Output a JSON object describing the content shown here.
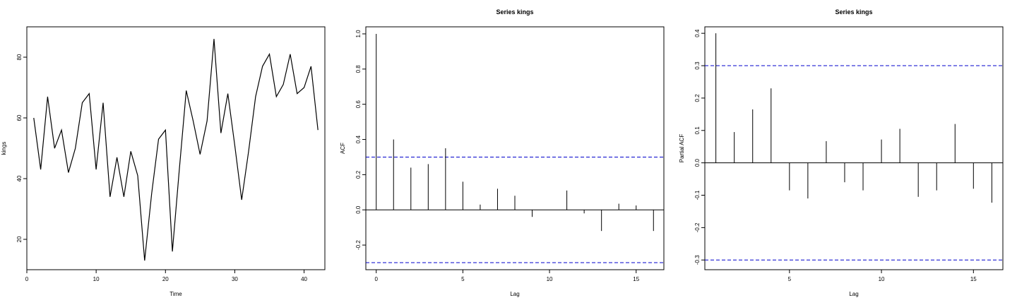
{
  "chart_data": [
    {
      "type": "line",
      "title": "",
      "xlabel": "Time",
      "ylabel": "kings",
      "xlim": [
        0,
        43
      ],
      "ylim": [
        10,
        90
      ],
      "x_ticks": [
        0,
        10,
        20,
        30,
        40
      ],
      "y_ticks": [
        20,
        40,
        60,
        80
      ],
      "x": [
        1,
        2,
        3,
        4,
        5,
        6,
        7,
        8,
        9,
        10,
        11,
        12,
        13,
        14,
        15,
        16,
        17,
        18,
        19,
        20,
        21,
        22,
        23,
        24,
        25,
        26,
        27,
        28,
        29,
        30,
        31,
        32,
        33,
        34,
        35,
        36,
        37,
        38,
        39,
        40,
        41,
        42
      ],
      "values": [
        60,
        43,
        67,
        50,
        56,
        42,
        50,
        65,
        68,
        43,
        65,
        34,
        47,
        34,
        49,
        41,
        13,
        35,
        53,
        56,
        16,
        43,
        69,
        59,
        48,
        59,
        86,
        55,
        68,
        51,
        33,
        49,
        67,
        77,
        81,
        67,
        71,
        81,
        68,
        70,
        77,
        56
      ],
      "line_color": "#000000"
    },
    {
      "type": "bar",
      "title": "Series  kings",
      "xlabel": "Lag",
      "ylabel": "ACF",
      "xlim": [
        -0.6,
        16.6
      ],
      "ylim": [
        -0.34,
        1.04
      ],
      "x_ticks": [
        0,
        5,
        10,
        15
      ],
      "y_ticks": [
        -0.2,
        0.0,
        0.2,
        0.4,
        0.6,
        0.8,
        1.0
      ],
      "y_tick_labels": [
        "-0.2",
        "0.0",
        "0.2",
        "0.4",
        "0.6",
        "0.8",
        "1.0"
      ],
      "x": [
        0,
        1,
        2,
        3,
        4,
        5,
        6,
        7,
        8,
        9,
        10,
        11,
        12,
        13,
        14,
        15,
        16
      ],
      "values": [
        1.0,
        0.4,
        0.24,
        0.26,
        0.35,
        0.16,
        0.03,
        0.12,
        0.08,
        -0.04,
        0.0,
        0.11,
        -0.02,
        -0.12,
        0.035,
        0.025,
        -0.12
      ],
      "confidence_bound": 0.3,
      "bound_color": "#0000cc"
    },
    {
      "type": "bar",
      "title": "Series  kings",
      "xlabel": "Lag",
      "ylabel": "Partial ACF",
      "xlim": [
        0.4,
        16.6
      ],
      "ylim": [
        -0.33,
        0.42
      ],
      "x_ticks": [
        5,
        10,
        15
      ],
      "y_ticks": [
        -0.3,
        -0.2,
        -0.1,
        0.0,
        0.1,
        0.2,
        0.3,
        0.4
      ],
      "y_tick_labels": [
        "-0.3",
        "-0.2",
        "-0.1",
        "0.0",
        "0.1",
        "0.2",
        "0.3",
        "0.4"
      ],
      "x": [
        1,
        2,
        3,
        4,
        5,
        6,
        7,
        8,
        9,
        10,
        11,
        12,
        13,
        14,
        15,
        16
      ],
      "values": [
        0.4,
        0.095,
        0.165,
        0.23,
        -0.085,
        -0.11,
        0.067,
        -0.06,
        -0.085,
        0.072,
        0.105,
        -0.105,
        -0.085,
        0.12,
        -0.08,
        -0.123
      ],
      "confidence_bound": 0.3,
      "bound_color": "#0000cc"
    }
  ]
}
